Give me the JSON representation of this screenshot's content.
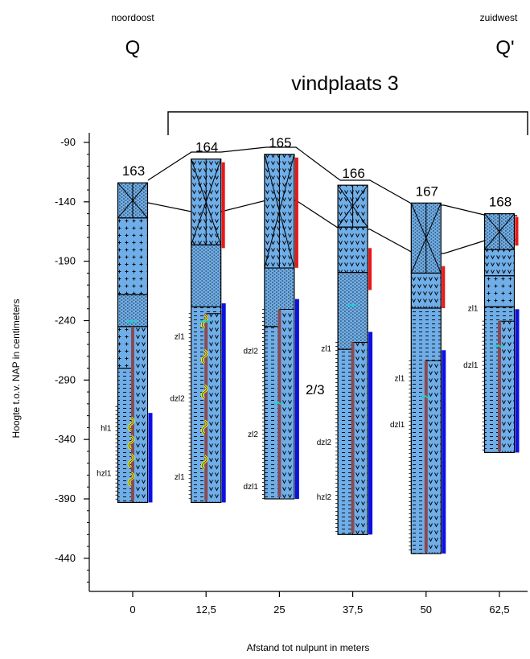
{
  "header": {
    "left_direction": "noordoost",
    "left_letter": "Q",
    "right_direction": "zuidwest",
    "right_letter": "Q'",
    "site_label": "vindplaats 3",
    "zone_label": "2/3"
  },
  "axes": {
    "y_title": "Hoogte t.o.v. NAP in centimeters",
    "x_title": "Afstand tot nulpunt in meters",
    "y_ticks": [
      "-90",
      "-140",
      "-190",
      "-240",
      "-290",
      "-340",
      "-390",
      "-440"
    ],
    "x_ticks": [
      "0",
      "12,5",
      "25",
      "37,5",
      "50",
      "62,5"
    ]
  },
  "colors": {
    "column_fill": "#6faee8",
    "red_marker": "#e81818",
    "blue_marker": "#0b12e0",
    "maroon_core": "#8a4a52",
    "yellow_worm": "#f0f020",
    "cyan_shell": "#1ad0c8"
  },
  "boreholes": [
    {
      "id": "163",
      "x_m": 0,
      "top_cm": -124,
      "bottom_cm": -393,
      "units": [
        {
          "label": "hl1",
          "cm": -330
        },
        {
          "label": "hzl1",
          "cm": -368
        }
      ]
    },
    {
      "id": "164",
      "x_m": 12.5,
      "top_cm": -104,
      "bottom_cm": -393,
      "units": [
        {
          "label": "zl1",
          "cm": -253
        },
        {
          "label": "dzl2",
          "cm": -305
        },
        {
          "label": "zl1",
          "cm": -371
        }
      ]
    },
    {
      "id": "165",
      "x_m": 25,
      "top_cm": -100,
      "bottom_cm": -390,
      "units": [
        {
          "label": "dzl2",
          "cm": -265
        },
        {
          "label": "zl2",
          "cm": -335
        },
        {
          "label": "dzl1",
          "cm": -379
        }
      ]
    },
    {
      "id": "166",
      "x_m": 37.5,
      "top_cm": -126,
      "bottom_cm": -420,
      "units": [
        {
          "label": "zl1",
          "cm": -263
        },
        {
          "label": "dzl2",
          "cm": -342
        },
        {
          "label": "hzl2",
          "cm": -388
        }
      ]
    },
    {
      "id": "167",
      "x_m": 50,
      "top_cm": -141,
      "bottom_cm": -436,
      "units": [
        {
          "label": "zl1",
          "cm": -288
        },
        {
          "label": "dzl1",
          "cm": -327
        }
      ]
    },
    {
      "id": "168",
      "x_m": 62.5,
      "top_cm": -150,
      "bottom_cm": -351,
      "units": [
        {
          "label": "zl1",
          "cm": -229
        },
        {
          "label": "dzl1",
          "cm": -277
        }
      ]
    }
  ]
}
